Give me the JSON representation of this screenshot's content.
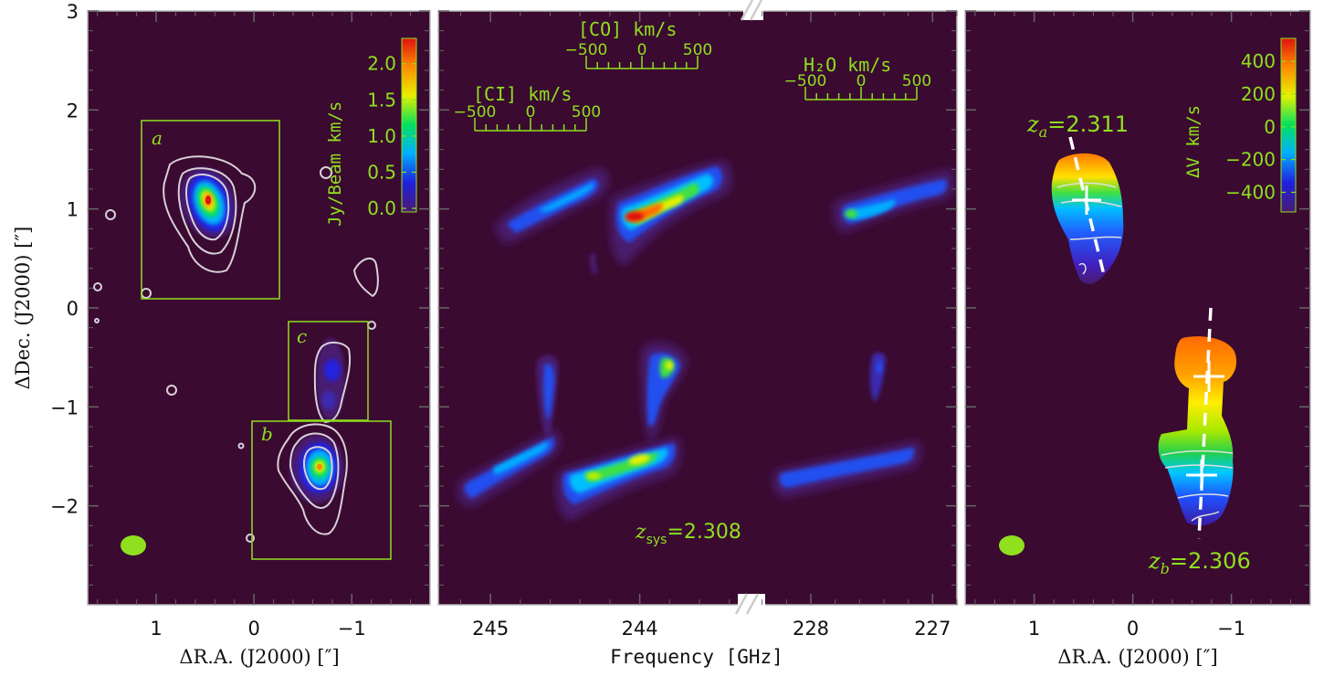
{
  "colors": {
    "background": "#3a0a30",
    "annotation": "#8fe01e",
    "contour": "#d8d0d8",
    "axis": "#555555",
    "colormap": [
      "#4a1a70",
      "#2020e0",
      "#00b0ff",
      "#00e060",
      "#e8f000",
      "#ff8800",
      "#e01010"
    ]
  },
  "chart_data": [
    {
      "type": "heatmap",
      "panel": "dust-continuum-map",
      "xlabel": "ΔR.A. (J2000) [″]",
      "ylabel": "ΔDec. (J2000) [″]",
      "xticks": [
        "1",
        "0",
        "−1"
      ],
      "yticks": [
        "3",
        "2",
        "1",
        "0",
        "−1",
        "−2"
      ],
      "xlim": [
        1.7,
        -1.8
      ],
      "ylim": [
        -3.0,
        3.0
      ],
      "colorbar": {
        "label": "Jy/Beam km/s",
        "ticks": [
          "2.0",
          "1.5",
          "1.0",
          "0.5",
          "0.0"
        ],
        "range": [
          -0.05,
          2.35
        ]
      },
      "boxes": [
        {
          "label": "a",
          "ra": [
            1.2,
            -0.25
          ],
          "dec": [
            0.1,
            1.9
          ]
        },
        {
          "label": "c",
          "ra": [
            -0.33,
            -1.15
          ],
          "dec": [
            -1.13,
            -0.13
          ]
        },
        {
          "label": "b",
          "ra": [
            0.02,
            -1.4
          ],
          "dec": [
            -2.53,
            -1.13
          ]
        }
      ],
      "sources": [
        {
          "ra": 0.47,
          "dec": 1.07,
          "peak": 2.3
        },
        {
          "ra": -0.65,
          "dec": -1.65,
          "peak": 1.6
        },
        {
          "ra": -0.77,
          "dec": -0.6,
          "peak": 0.7
        }
      ],
      "beam": {
        "ra": 1.25,
        "dec": -2.4
      }
    },
    {
      "type": "heatmap",
      "panel": "position-frequency-diagram",
      "xlabel": "Frequency [GHz]",
      "xticks": [
        "245",
        "244",
        "228",
        "227"
      ],
      "line_scales": [
        {
          "name": "[CI] km/s",
          "ticks": [
            "−500",
            "0",
            "500"
          ]
        },
        {
          "name": "[CO] km/s",
          "ticks": [
            "−500",
            "0",
            "500"
          ]
        },
        {
          "name": "H₂O km/s",
          "ticks": [
            "−500",
            "0",
            "500"
          ]
        }
      ],
      "annotation": {
        "label": "z",
        "subscript": "sys",
        "value": "=2.308"
      }
    },
    {
      "type": "heatmap",
      "panel": "velocity-field-map",
      "xlabel": "ΔR.A. (J2000) [″]",
      "xticks": [
        "1",
        "0",
        "−1"
      ],
      "xlim": [
        1.7,
        -1.8
      ],
      "colorbar": {
        "label": "ΔV km/s",
        "ticks": [
          "400",
          "200",
          "0",
          "−200",
          "−400"
        ],
        "range": [
          -520,
          540
        ]
      },
      "redshift_labels": [
        {
          "label": "z",
          "subscript": "a",
          "value": "=2.311"
        },
        {
          "label": "z",
          "subscript": "b",
          "value": "=2.306"
        }
      ],
      "beam": {
        "ra": 1.25,
        "dec": -2.4
      }
    }
  ]
}
